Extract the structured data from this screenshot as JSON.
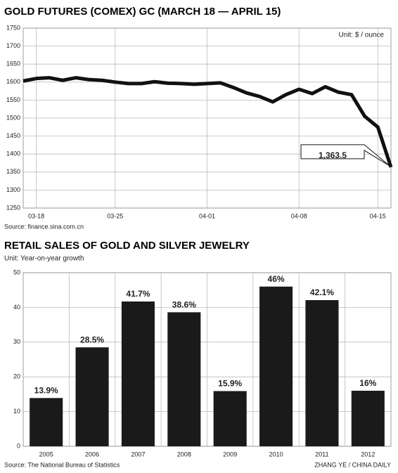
{
  "chart_data": [
    {
      "type": "line",
      "title": "GOLD FUTURES (COMEX) GC (MARCH 18 — APRIL 15)",
      "unit": "Unit: $ / ounce",
      "source": "Source: finance.sina.com.cn",
      "categories": [
        null,
        "03-18",
        null,
        null,
        null,
        null,
        null,
        "03-25",
        null,
        null,
        null,
        null,
        null,
        null,
        "04-01",
        null,
        null,
        null,
        null,
        null,
        null,
        "04-08",
        null,
        null,
        null,
        null,
        null,
        "04-15",
        null
      ],
      "series": [
        {
          "name": "GC",
          "color": "#111111",
          "values": [
            1603,
            1610,
            1612,
            1605,
            1612,
            1607,
            1605,
            1600,
            1596,
            1596,
            1601,
            1597,
            1596,
            1594,
            1596,
            1598,
            1585,
            1570,
            1560,
            1545,
            1565,
            1580,
            1568,
            1587,
            1572,
            1565,
            1505,
            1475,
            1363.5
          ],
          "value_labels": [
            null,
            null,
            null,
            null,
            null,
            null,
            null,
            null,
            null,
            null,
            null,
            null,
            null,
            null,
            null,
            null,
            null,
            null,
            null,
            null,
            null,
            null,
            null,
            null,
            null,
            null,
            null,
            null,
            "1,363.5"
          ]
        }
      ],
      "ylim": [
        1250,
        1750
      ],
      "yticks": [
        1250,
        1300,
        1350,
        1400,
        1450,
        1500,
        1550,
        1600,
        1650,
        1700,
        1750
      ],
      "grid": true
    },
    {
      "type": "bar",
      "title": "RETAIL SALES OF GOLD AND SILVER JEWELRY",
      "subtitle": "Unit: Year-on-year growth",
      "source": "Source: The National Bureau of Statistics",
      "credit": "ZHANG YE / CHINA DAILY",
      "categories": [
        "2005",
        "2006",
        "2007",
        "2008",
        "2009",
        "2010",
        "2011",
        "2012"
      ],
      "values": [
        13.9,
        28.5,
        41.7,
        38.6,
        15.9,
        46,
        42.1,
        16
      ],
      "value_labels": [
        "13.9%",
        "28.5%",
        "41.7%",
        "38.6%",
        "15.9%",
        "46%",
        "42.1%",
        "16%"
      ],
      "color": "#1a1a1a",
      "ylim": [
        0,
        50
      ],
      "yticks": [
        0,
        10,
        20,
        30,
        40,
        50
      ],
      "grid": true
    }
  ]
}
